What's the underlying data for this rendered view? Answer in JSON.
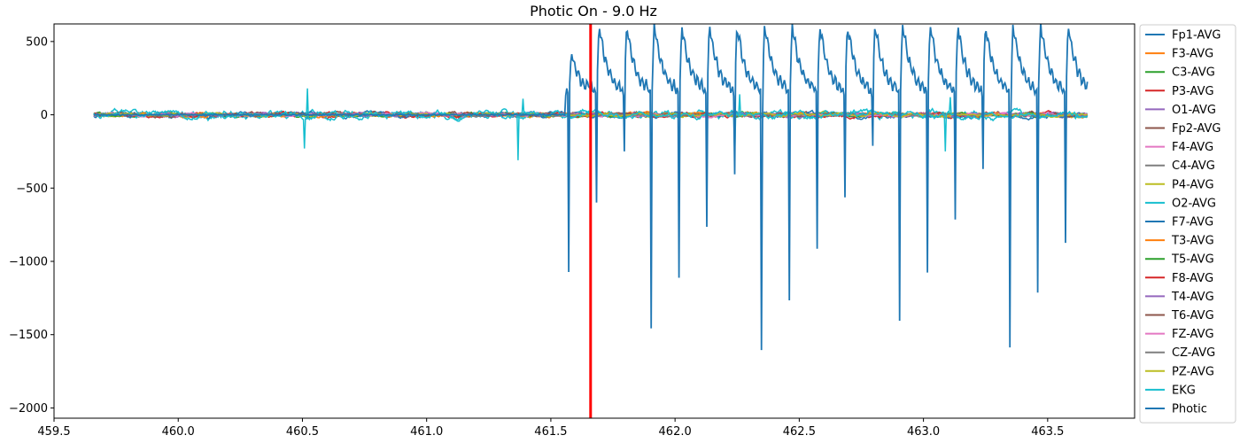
{
  "chart_data": {
    "type": "line",
    "title": "Photic On - 9.0 Hz",
    "xlabel": "",
    "ylabel": "",
    "xlim": [
      459.5,
      463.85
    ],
    "ylim": [
      -2070,
      620
    ],
    "x_ticks": [
      459.5,
      460.0,
      460.5,
      461.0,
      461.5,
      462.0,
      462.5,
      463.0,
      463.5
    ],
    "x_tick_labels": [
      "459.5",
      "460.0",
      "460.5",
      "461.0",
      "461.5",
      "462.0",
      "462.5",
      "463.0",
      "463.5"
    ],
    "y_ticks": [
      500,
      0,
      -500,
      -1000,
      -1500,
      -2000
    ],
    "y_tick_labels": [
      "500",
      "0",
      "−500",
      "−1000",
      "−1500",
      "−2000"
    ],
    "grid": false,
    "legend_position": "outside-right",
    "marker_x": 461.66,
    "marker_color": "#ff0000",
    "x_start": 459.66,
    "x_end": 463.66,
    "photic_start": 461.57,
    "photic_period": 0.1111,
    "series": [
      {
        "name": "Fp1-AVG",
        "color": "#1f77b4",
        "amp": 12
      },
      {
        "name": "F3-AVG",
        "color": "#ff7f0e",
        "amp": 10
      },
      {
        "name": "C3-AVG",
        "color": "#2ca02c",
        "amp": 9
      },
      {
        "name": "P3-AVG",
        "color": "#d62728",
        "amp": 11
      },
      {
        "name": "O1-AVG",
        "color": "#9467bd",
        "amp": 10
      },
      {
        "name": "Fp2-AVG",
        "color": "#8c564b",
        "amp": 12
      },
      {
        "name": "F4-AVG",
        "color": "#e377c2",
        "amp": 9
      },
      {
        "name": "C4-AVG",
        "color": "#7f7f7f",
        "amp": 8
      },
      {
        "name": "P4-AVG",
        "color": "#bcbd22",
        "amp": 10
      },
      {
        "name": "O2-AVG",
        "color": "#17becf",
        "amp": 22
      },
      {
        "name": "F7-AVG",
        "color": "#1f77b4",
        "amp": 14
      },
      {
        "name": "T3-AVG",
        "color": "#ff7f0e",
        "amp": 10
      },
      {
        "name": "T5-AVG",
        "color": "#2ca02c",
        "amp": 9
      },
      {
        "name": "F8-AVG",
        "color": "#d62728",
        "amp": 12
      },
      {
        "name": "T4-AVG",
        "color": "#9467bd",
        "amp": 9
      },
      {
        "name": "T6-AVG",
        "color": "#8c564b",
        "amp": 8
      },
      {
        "name": "FZ-AVG",
        "color": "#e377c2",
        "amp": 8
      },
      {
        "name": "CZ-AVG",
        "color": "#7f7f7f",
        "amp": 7
      },
      {
        "name": "PZ-AVG",
        "color": "#bcbd22",
        "amp": 8
      },
      {
        "name": "EKG",
        "color": "#17becf",
        "amp": 18,
        "spikes": [
          {
            "x": 460.51,
            "y": -230
          },
          {
            "x": 460.52,
            "y": 180
          },
          {
            "x": 461.37,
            "y": -310
          },
          {
            "x": 461.39,
            "y": 110
          },
          {
            "x": 462.24,
            "y": -280
          },
          {
            "x": 462.26,
            "y": 140
          },
          {
            "x": 463.09,
            "y": -250
          },
          {
            "x": 463.11,
            "y": 120
          }
        ]
      },
      {
        "name": "Photic",
        "color": "#1f77b4",
        "amp": 0
      }
    ]
  }
}
